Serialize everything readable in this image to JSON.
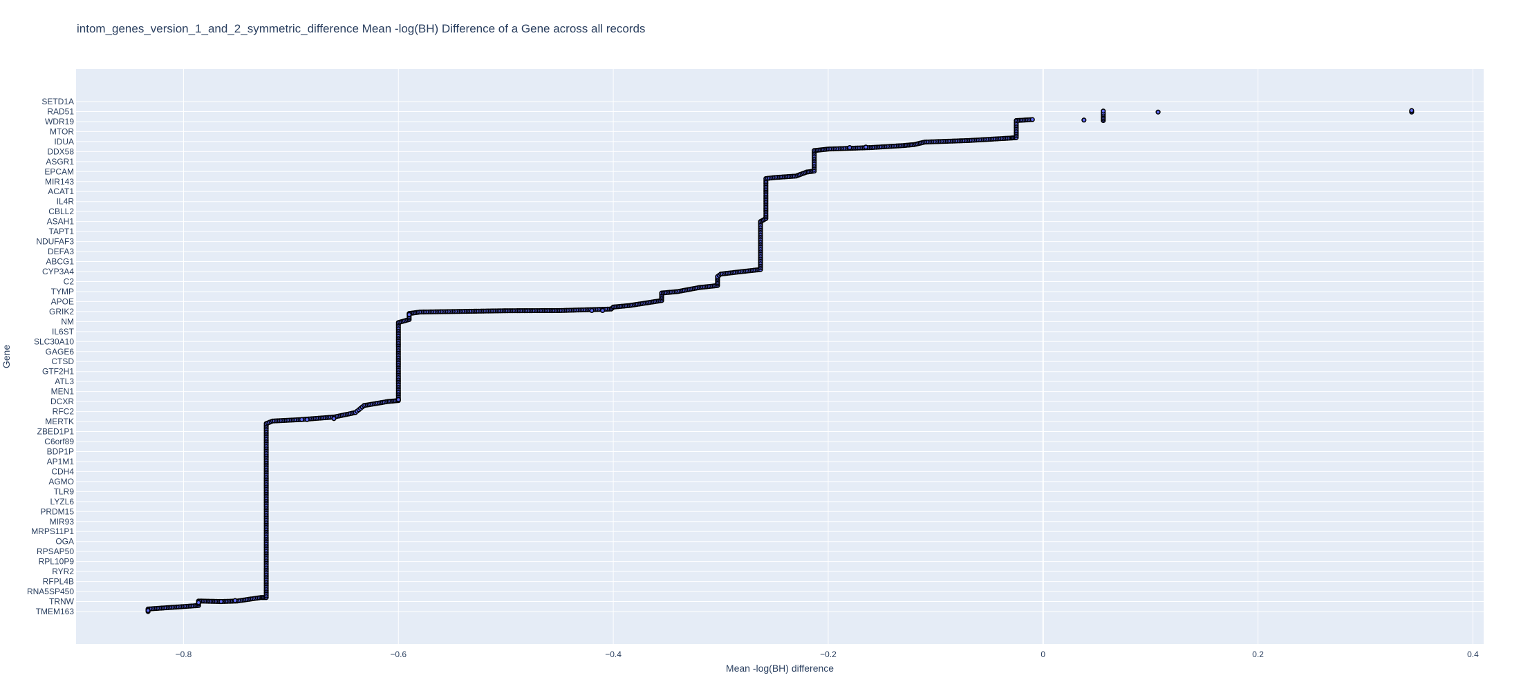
{
  "chart_data": {
    "type": "scatter",
    "title": "intom_genes_version_1_and_2_symmetric_difference Mean -log(BH) Difference of a Gene across all records",
    "xlabel": "Mean -log(BH) difference",
    "ylabel": "Gene",
    "xlim": [
      -0.9,
      0.41
    ],
    "x_ticks": [
      -0.8,
      -0.6,
      -0.4,
      -0.2,
      0,
      0.2,
      0.4
    ],
    "x_tick_labels": [
      "−0.8",
      "−0.6",
      "−0.4",
      "−0.2",
      "0",
      "0.2",
      "0.4"
    ],
    "y_categories": [
      "TMEM163",
      "TRNW",
      "RNA5SP450",
      "RFPL4B",
      "RYR2",
      "RPL10P9",
      "RPSAP50",
      "OGA",
      "MRPS11P1",
      "MIR93",
      "PRDM15",
      "LYZL6",
      "TLR9",
      "AGMO",
      "CDH4",
      "AP1M1",
      "BDP1P",
      "C6orf89",
      "ZBED1P1",
      "MERTK",
      "RFC2",
      "DCXR",
      "MEN1",
      "ATL3",
      "GTF2H1",
      "CTSD",
      "GAGE6",
      "SLC30A10",
      "IL6ST",
      "NM",
      "GRIK2",
      "APOE",
      "TYMP",
      "C2",
      "CYP3A4",
      "ABCG1",
      "DEFA3",
      "NDUFAF3",
      "TAPT1",
      "ASAH1",
      "CBLL2",
      "IL4R",
      "ACAT1",
      "MIR143",
      "EPCAM",
      "ASGR1",
      "DDX58",
      "IDUA",
      "MTOR",
      "WDR19",
      "RAD51",
      "SETD1A"
    ],
    "grid": true,
    "marker": {
      "fill": "#636efa",
      "edge": "#000000"
    },
    "curve_knots": [
      [
        -0.833,
        0.0
      ],
      [
        -0.833,
        0.25
      ],
      [
        -0.786,
        0.6
      ],
      [
        -0.786,
        1.05
      ],
      [
        -0.765,
        1.0
      ],
      [
        -0.75,
        1.05
      ],
      [
        -0.728,
        1.4
      ],
      [
        -0.723,
        1.4
      ],
      [
        -0.723,
        18.8
      ],
      [
        -0.717,
        19.05
      ],
      [
        -0.69,
        19.2
      ],
      [
        -0.66,
        19.45
      ],
      [
        -0.64,
        19.9
      ],
      [
        -0.632,
        20.6
      ],
      [
        -0.61,
        21.0
      ],
      [
        -0.6,
        21.1
      ],
      [
        -0.6,
        28.9
      ],
      [
        -0.59,
        29.2
      ],
      [
        -0.59,
        29.8
      ],
      [
        -0.58,
        29.95
      ],
      [
        -0.5,
        30.08
      ],
      [
        -0.45,
        30.1
      ],
      [
        -0.402,
        30.25
      ],
      [
        -0.4,
        30.45
      ],
      [
        -0.385,
        30.6
      ],
      [
        -0.37,
        30.85
      ],
      [
        -0.355,
        31.1
      ],
      [
        -0.355,
        31.85
      ],
      [
        -0.34,
        32.0
      ],
      [
        -0.32,
        32.4
      ],
      [
        -0.303,
        32.6
      ],
      [
        -0.303,
        33.5
      ],
      [
        -0.3,
        33.75
      ],
      [
        -0.28,
        34.0
      ],
      [
        -0.263,
        34.2
      ],
      [
        -0.263,
        39.0
      ],
      [
        -0.258,
        39.3
      ],
      [
        -0.258,
        43.3
      ],
      [
        -0.25,
        43.4
      ],
      [
        -0.23,
        43.55
      ],
      [
        -0.22,
        43.95
      ],
      [
        -0.213,
        44.05
      ],
      [
        -0.213,
        46.1
      ],
      [
        -0.2,
        46.25
      ],
      [
        -0.16,
        46.4
      ],
      [
        -0.13,
        46.6
      ],
      [
        -0.12,
        46.7
      ],
      [
        -0.11,
        46.95
      ],
      [
        -0.07,
        47.1
      ],
      [
        -0.03,
        47.35
      ],
      [
        -0.025,
        47.4
      ],
      [
        -0.025,
        49.1
      ],
      [
        -0.01,
        49.2
      ]
    ],
    "scattered_points": [
      {
        "x": -0.833,
        "y": 0.1
      },
      {
        "x": -0.786,
        "y": 0.9
      },
      {
        "x": -0.765,
        "y": 1.0
      },
      {
        "x": -0.752,
        "y": 1.1
      },
      {
        "x": -0.69,
        "y": 19.2
      },
      {
        "x": -0.685,
        "y": 19.2
      },
      {
        "x": -0.66,
        "y": 19.3
      },
      {
        "x": -0.6,
        "y": 21.2
      },
      {
        "x": -0.59,
        "y": 29.7
      },
      {
        "x": -0.42,
        "y": 30.1
      },
      {
        "x": -0.41,
        "y": 30.1
      },
      {
        "x": -0.165,
        "y": 46.45
      },
      {
        "x": -0.18,
        "y": 46.4
      },
      {
        "x": 0.038,
        "y": 49.15
      },
      {
        "x": 0.056,
        "y": 49.1
      },
      {
        "x": 0.056,
        "y": 49.25
      },
      {
        "x": 0.056,
        "y": 49.4
      },
      {
        "x": 0.056,
        "y": 49.55
      },
      {
        "x": 0.056,
        "y": 49.7
      },
      {
        "x": 0.056,
        "y": 49.85
      },
      {
        "x": 0.056,
        "y": 50.05
      },
      {
        "x": 0.107,
        "y": 49.95
      },
      {
        "x": 0.343,
        "y": 49.95
      },
      {
        "x": 0.343,
        "y": 50.1
      }
    ]
  }
}
